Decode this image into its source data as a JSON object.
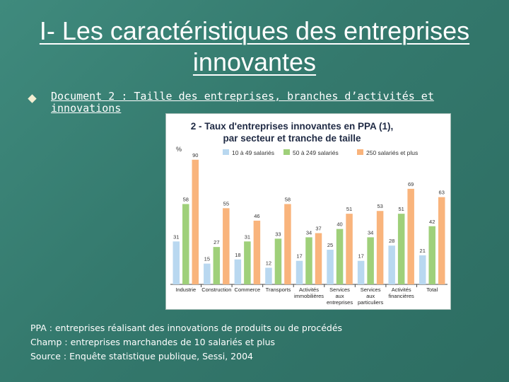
{
  "slide": {
    "title": "I- Les caractéristiques des entreprises innovantes",
    "document_label": "Document 2 : Taille des entreprises, branches d’activités et innovations",
    "notes": [
      "PPA : entreprises réalisant des innovations de produits ou de procédés",
      "Champ : entreprises marchandes de 10 salariés et plus",
      "Source : Enquête statistique publique, Sessi, 2004"
    ]
  },
  "colors": {
    "series": [
      "#b9d8f0",
      "#9fd07a",
      "#f9b47c"
    ],
    "background": "#3a8275"
  },
  "chart_data": {
    "type": "bar",
    "title_lines": [
      "2 - Taux d'entreprises innovantes en PPA (1),",
      "par secteur et tranche de taille"
    ],
    "ylabel": "%",
    "ylim": [
      0,
      95
    ],
    "grid": false,
    "legend_position": "top",
    "categories": [
      [
        "Industrie"
      ],
      [
        "Construction"
      ],
      [
        "Commerce"
      ],
      [
        "Transports"
      ],
      [
        "Activités",
        "immobilières"
      ],
      [
        "Services",
        "aux",
        "entreprises"
      ],
      [
        "Services",
        "aux",
        "particuliers"
      ],
      [
        "Activités",
        "financières"
      ],
      [
        "Total"
      ]
    ],
    "series": [
      {
        "name": "10 à 49 salariés",
        "values": [
          31,
          15,
          18,
          12,
          17,
          25,
          17,
          28,
          21
        ]
      },
      {
        "name": "50 à 249 salariés",
        "values": [
          58,
          27,
          31,
          33,
          34,
          40,
          34,
          51,
          42
        ]
      },
      {
        "name": "250 salariés et plus",
        "values": [
          90,
          55,
          46,
          58,
          37,
          51,
          53,
          69,
          63
        ]
      }
    ]
  }
}
